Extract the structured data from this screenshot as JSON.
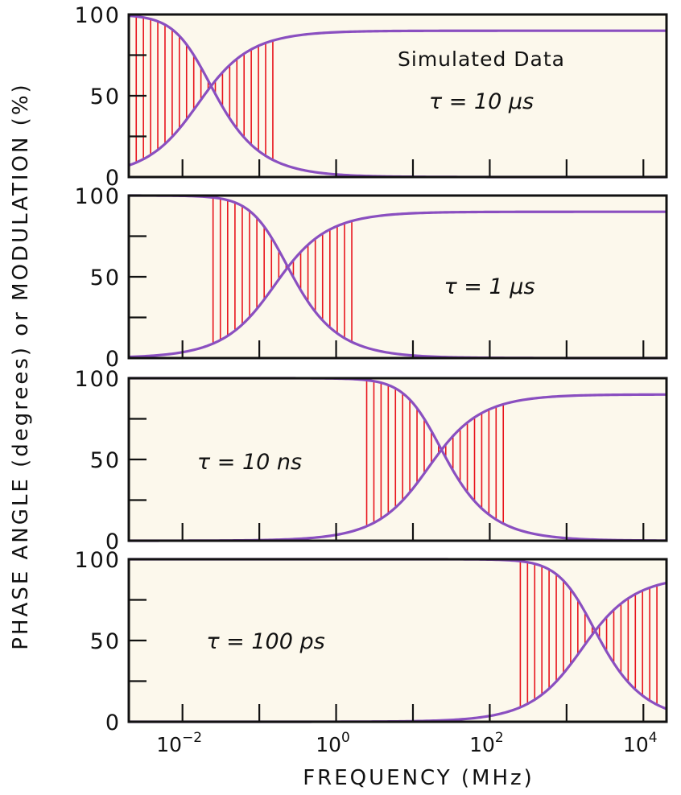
{
  "chart_data": {
    "type": "line",
    "x_scale": "log",
    "xlim": [
      0.002,
      20000
    ],
    "ylim": [
      0,
      100
    ],
    "y_ticks": [
      "0",
      "50",
      "100"
    ],
    "x_ticks": [
      {
        "base": "10",
        "exp": "−2",
        "value": 0.01
      },
      {
        "base": "10",
        "exp": "0",
        "value": 1
      },
      {
        "base": "10",
        "exp": "2",
        "value": 100
      },
      {
        "base": "10",
        "exp": "4",
        "value": 10000
      }
    ],
    "xlabel": "FREQUENCY (MHz)",
    "ylabel": "PHASE ANGLE (degrees) or MODULATION (%)",
    "phase_max": 90,
    "panels": [
      {
        "tau_us": 10,
        "label": "τ = 10 μs",
        "title": "Simulated Data",
        "shade_range": [
          0.0025,
          0.15
        ]
      },
      {
        "tau_us": 1,
        "label": "τ = 1 μs",
        "title": "",
        "shade_range": [
          0.025,
          1.6
        ]
      },
      {
        "tau_us": 0.01,
        "label": "τ = 10 ns",
        "title": "",
        "shade_range": [
          2.5,
          150
        ]
      },
      {
        "tau_us": 0.0001,
        "label": "τ = 100 ps",
        "title": "",
        "shade_range": [
          250,
          15000
        ]
      }
    ],
    "colors": {
      "curve": "#8a4fc0",
      "hatch": "#e8141c",
      "panel_bg": "#fcf8ec",
      "frame": "#111111"
    }
  }
}
